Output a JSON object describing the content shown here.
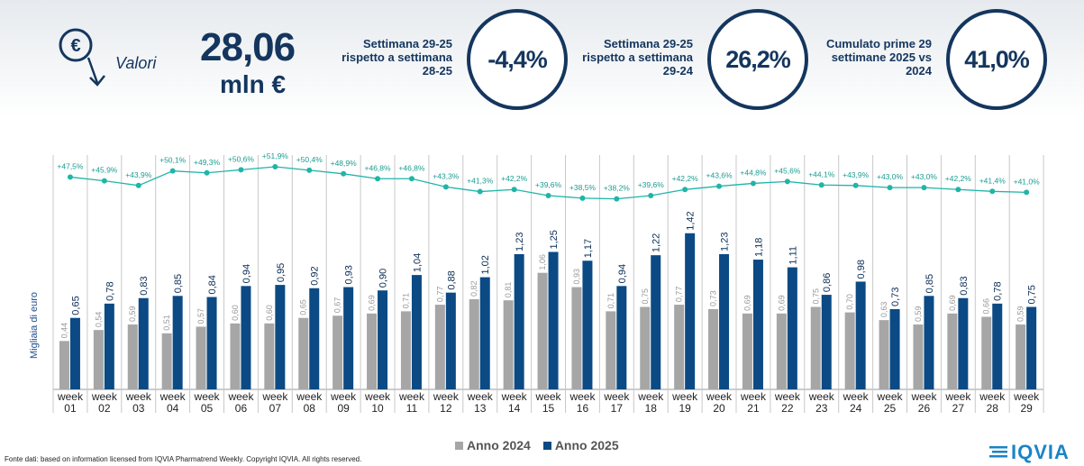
{
  "header": {
    "valori_label": "Valori",
    "value": "28,06",
    "unit": "mln €",
    "kpis": [
      {
        "label": "Settimana 29-25 rispetto a settimana 28-25",
        "value": "-4,4%"
      },
      {
        "label": "Settimana 29-25 rispetto a settimana 29-24",
        "value": "26,2%"
      },
      {
        "label": "Cumulato prime 29 settimane 2025 vs 2024",
        "value": "41,0%"
      }
    ]
  },
  "colors": {
    "navy": "#14365e",
    "series_2024": "#a6a6a6",
    "series_2025": "#0b4a84",
    "line": "#1fb5a8"
  },
  "chart_data": {
    "type": "bar",
    "ylabel": "Migliaia di euro",
    "categories": [
      "week 01",
      "week 02",
      "week 03",
      "week 04",
      "week 05",
      "week 06",
      "week 07",
      "week 08",
      "week 09",
      "week 10",
      "week 11",
      "week 12",
      "week 13",
      "week 14",
      "week 15",
      "week 16",
      "week 17",
      "week 18",
      "week 19",
      "week 20",
      "week 21",
      "week 22",
      "week 23",
      "week 24",
      "week 25",
      "week 26",
      "week 27",
      "week 28",
      "week 29"
    ],
    "series": [
      {
        "name": "Anno 2024",
        "values": [
          0.44,
          0.54,
          0.59,
          0.51,
          0.57,
          0.6,
          0.6,
          0.65,
          0.67,
          0.69,
          0.71,
          0.77,
          0.82,
          0.81,
          1.06,
          0.93,
          0.71,
          0.75,
          0.77,
          0.73,
          0.69,
          0.69,
          0.75,
          0.7,
          0.63,
          0.59,
          0.69,
          0.66,
          0.59
        ]
      },
      {
        "name": "Anno 2025",
        "values": [
          0.65,
          0.78,
          0.83,
          0.85,
          0.84,
          0.94,
          0.95,
          0.92,
          0.93,
          0.9,
          1.04,
          0.88,
          1.02,
          1.23,
          1.25,
          1.17,
          0.94,
          1.22,
          1.42,
          1.23,
          1.18,
          1.11,
          0.86,
          0.98,
          0.73,
          0.85,
          0.83,
          0.78,
          0.75
        ]
      }
    ],
    "line_series": {
      "values": [
        47.5,
        45.9,
        43.9,
        50.1,
        49.3,
        50.6,
        51.9,
        50.4,
        48.9,
        46.8,
        46.8,
        43.3,
        41.3,
        42.2,
        39.6,
        38.5,
        38.2,
        39.6,
        42.2,
        43.6,
        44.8,
        45.6,
        44.1,
        43.9,
        43.0,
        43.0,
        42.2,
        41.4,
        41.0
      ],
      "labels": [
        "+47,5%",
        "+45,9%",
        "+43,9%",
        "+50,1%",
        "+49,3%",
        "+50,6%",
        "+51,9%",
        "+50,4%",
        "+48,9%",
        "+46,8%",
        "+46,8%",
        "+43,3%",
        "+41,3%",
        "+42,2%",
        "+39,6%",
        "+38,5%",
        "+38,2%",
        "+39,6%",
        "+42,2%",
        "+43,6%",
        "+44,8%",
        "+45,6%",
        "+44,1%",
        "+43,9%",
        "+43,0%",
        "+43,0%",
        "+42,2%",
        "+41,4%",
        "+41,0%"
      ]
    },
    "grid": false,
    "legend_position": "bottom"
  },
  "legend": [
    {
      "label": "Anno 2024"
    },
    {
      "label": "Anno 2025"
    }
  ],
  "footer": {
    "source": "Fonte dati: based on information licensed from IQVIA Pharmatrend Weekly. Copyright IQVIA. All rights reserved.",
    "logo_text": "IQVIA"
  }
}
